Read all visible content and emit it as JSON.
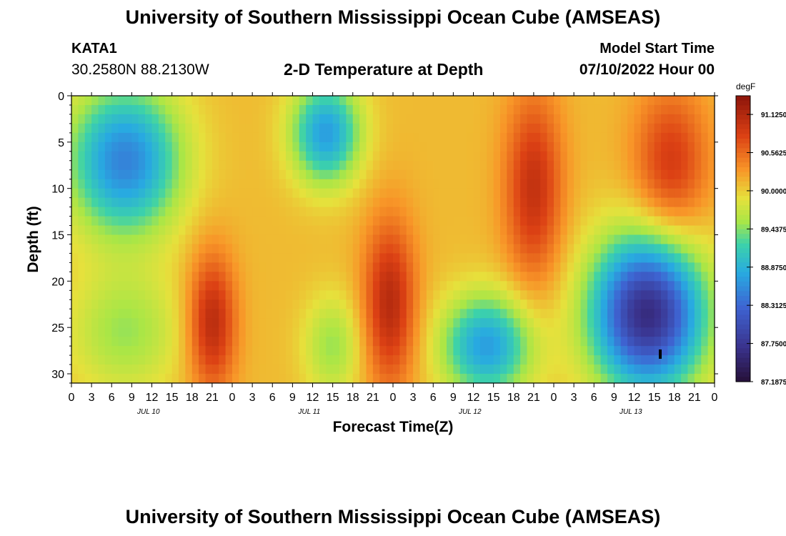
{
  "header": {
    "title": "University of Southern Mississippi Ocean Cube (AMSEAS)",
    "station": "KATA1",
    "coordinates": "30.2580N  88.2130W",
    "subtitle": "2-D Temperature at Depth",
    "model_start_label": "Model Start Time",
    "model_start_value": "07/10/2022 Hour 00"
  },
  "footer": {
    "title": "University of Southern Mississippi Ocean Cube (AMSEAS)"
  },
  "colorbar": {
    "unit": "degF",
    "tick_labels": [
      "91.1250",
      "90.5625",
      "90.0000",
      "89.4375",
      "88.8750",
      "88.3125",
      "87.7500",
      "87.1875"
    ],
    "range": [
      87.1875,
      91.4
    ]
  },
  "chart_data": {
    "type": "heatmap",
    "title": "2-D Temperature at Depth",
    "xlabel": "Forecast Time(Z)",
    "ylabel": "Depth (ft)",
    "x_ticks": [
      "0",
      "3",
      "6",
      "9",
      "12",
      "15",
      "18",
      "21",
      "0",
      "3",
      "6",
      "9",
      "12",
      "15",
      "18",
      "21",
      "0",
      "3",
      "6",
      "9",
      "12",
      "15",
      "18",
      "21",
      "0",
      "3",
      "6",
      "9",
      "12",
      "15",
      "18",
      "21",
      "0"
    ],
    "x_day_labels": [
      "JUL 10",
      "JUL 11",
      "JUL 12",
      "JUL 13"
    ],
    "x_range_hours": [
      0,
      96
    ],
    "y_ticks": [
      "0",
      "5",
      "10",
      "15",
      "20",
      "25",
      "30"
    ],
    "y_range_ft": [
      0,
      31
    ],
    "z_unit": "degF",
    "z_range": [
      87.1875,
      91.4
    ],
    "temperature_pattern": [
      {
        "hours": [
          0,
          16
        ],
        "depth_ft": [
          0,
          14
        ],
        "temp_f": 88.5,
        "note_visible": "cool"
      },
      {
        "hours": [
          0,
          16
        ],
        "depth_ft": [
          20,
          31
        ],
        "temp_f": 89.5
      },
      {
        "hours": [
          19,
          23
        ],
        "depth_ft": [
          18,
          31
        ],
        "temp_f": 91.1
      },
      {
        "hours": [
          34,
          42
        ],
        "depth_ft": [
          0,
          8
        ],
        "temp_f": 88.7
      },
      {
        "hours": [
          36,
          42
        ],
        "depth_ft": [
          23,
          31
        ],
        "temp_f": 89.5
      },
      {
        "hours": [
          45,
          50
        ],
        "depth_ft": [
          14,
          31
        ],
        "temp_f": 91.1
      },
      {
        "hours": [
          56,
          68
        ],
        "depth_ft": [
          23,
          31
        ],
        "temp_f": 88.7
      },
      {
        "hours": [
          66,
          72
        ],
        "depth_ft": [
          0,
          20
        ],
        "temp_f": 91.0
      },
      {
        "hours": [
          78,
          94
        ],
        "depth_ft": [
          16,
          31
        ],
        "temp_f": 87.6
      },
      {
        "hours": [
          85,
          94
        ],
        "depth_ft": [
          0,
          15
        ],
        "temp_f": 90.9
      }
    ]
  }
}
